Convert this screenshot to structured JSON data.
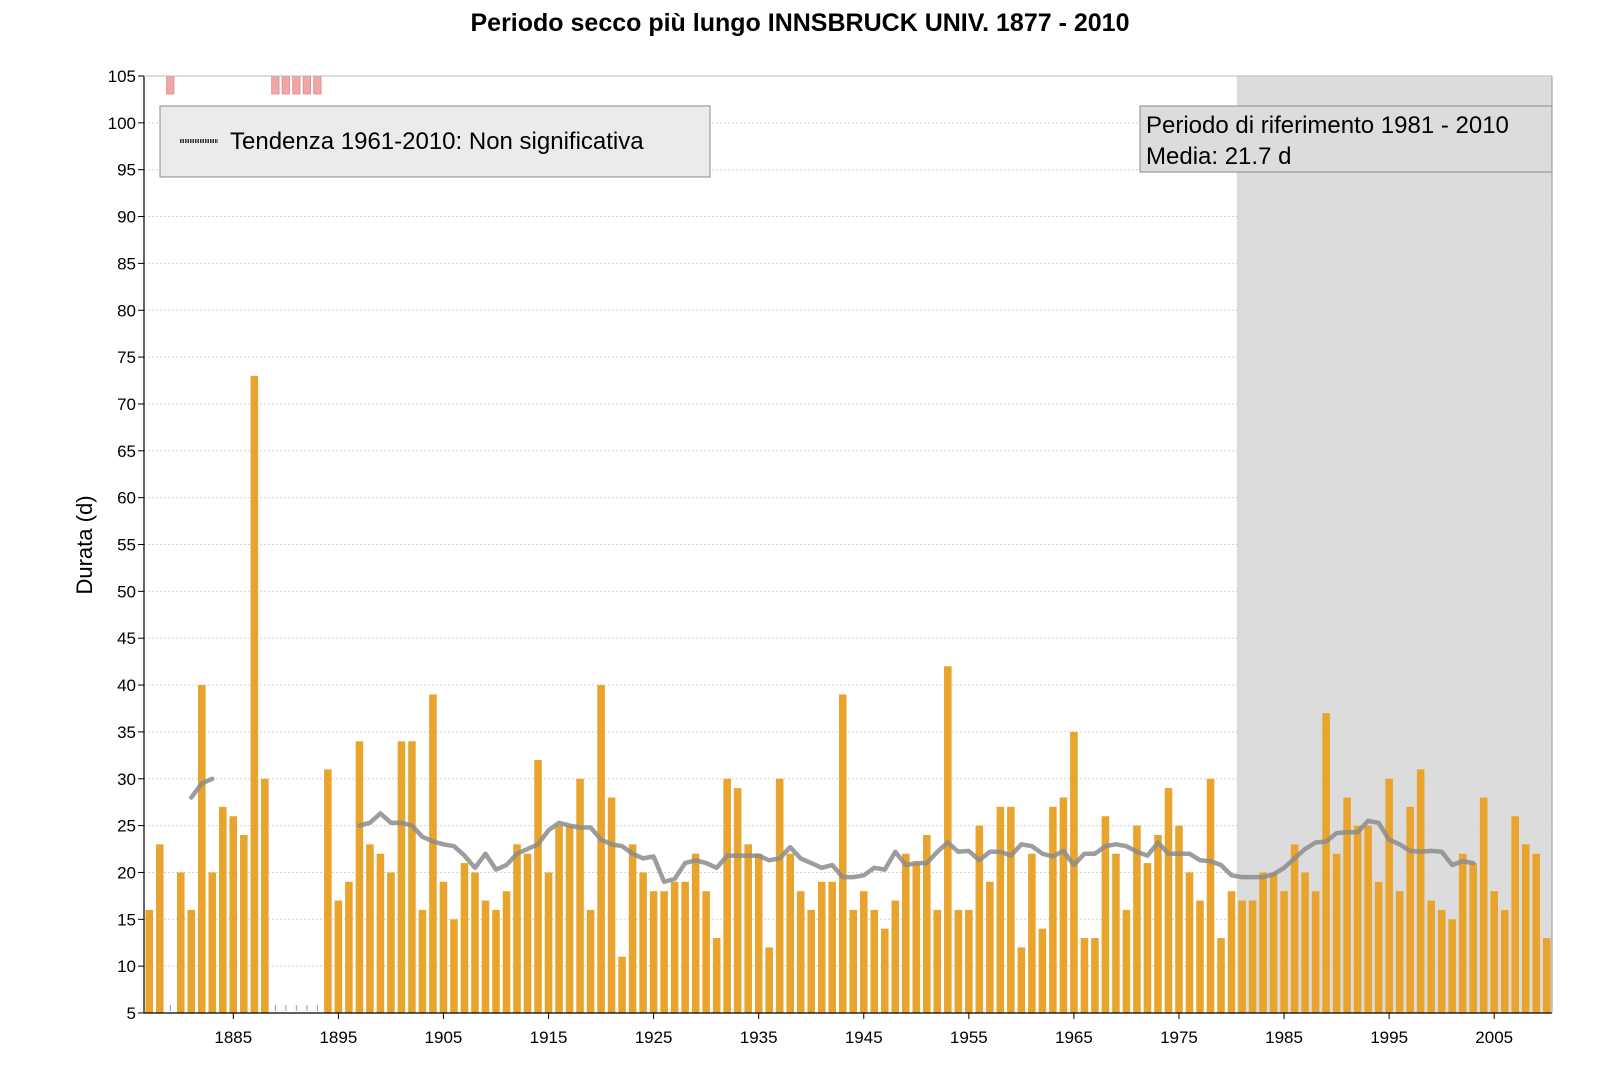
{
  "chart_data": {
    "type": "bar",
    "title": "Periodo secco più lungo INNSBRUCK UNIV. 1877 - 2010",
    "ylabel": "Durata (d)",
    "xlabel": "",
    "ylim": [
      5,
      105
    ],
    "y_ticks": [
      5,
      10,
      15,
      20,
      25,
      30,
      35,
      40,
      45,
      50,
      55,
      60,
      65,
      70,
      75,
      80,
      85,
      90,
      95,
      100,
      105
    ],
    "xlim": [
      1877,
      2010
    ],
    "x_ticks": [
      1885,
      1895,
      1905,
      1915,
      1925,
      1935,
      1945,
      1955,
      1965,
      1975,
      1985,
      1995,
      2005
    ],
    "grid": "horizontal",
    "bar_color": "#E8A42C",
    "trend_color": "#8C8C8C",
    "missing_color": "#F2A6A6",
    "reference_period": {
      "start": 1981,
      "end": 2010,
      "label": "Periodo di riferimento 1981 - 2010",
      "mean_label": "Media: 21.7 d",
      "shade_color": "#DCDCDC"
    },
    "legend": {
      "placement": "top-left",
      "trend_label": "Tendenza 1961-2010: Non significativa"
    },
    "missing_years": [
      1879,
      1889,
      1890,
      1891,
      1892,
      1893
    ],
    "series": [
      {
        "kind": "bar",
        "x": [
          1877,
          1878,
          1880,
          1881,
          1882,
          1883,
          1884,
          1885,
          1886,
          1887,
          1888,
          1894,
          1895,
          1896,
          1897,
          1898,
          1899,
          1900,
          1901,
          1902,
          1903,
          1904,
          1905,
          1906,
          1907,
          1908,
          1909,
          1910,
          1911,
          1912,
          1913,
          1914,
          1915,
          1916,
          1917,
          1918,
          1919,
          1920,
          1921,
          1922,
          1923,
          1924,
          1925,
          1926,
          1927,
          1928,
          1929,
          1930,
          1931,
          1932,
          1933,
          1934,
          1935,
          1936,
          1937,
          1938,
          1939,
          1940,
          1941,
          1942,
          1943,
          1944,
          1945,
          1946,
          1947,
          1948,
          1949,
          1950,
          1951,
          1952,
          1953,
          1954,
          1955,
          1956,
          1957,
          1958,
          1959,
          1960,
          1961,
          1962,
          1963,
          1964,
          1965,
          1966,
          1967,
          1968,
          1969,
          1970,
          1971,
          1972,
          1973,
          1974,
          1975,
          1976,
          1977,
          1978,
          1979,
          1980,
          1981,
          1982,
          1983,
          1984,
          1985,
          1986,
          1987,
          1988,
          1989,
          1990,
          1991,
          1992,
          1993,
          1994,
          1995,
          1996,
          1997,
          1998,
          1999,
          2000,
          2001,
          2002,
          2003,
          2004,
          2005,
          2006,
          2007,
          2008,
          2009,
          2010
        ],
        "values": [
          16,
          23,
          20,
          16,
          40,
          20,
          27,
          26,
          24,
          73,
          30,
          31,
          17,
          19,
          34,
          23,
          22,
          20,
          34,
          34,
          16,
          39,
          19,
          15,
          21,
          20,
          17,
          16,
          18,
          23,
          22,
          32,
          20,
          25,
          25,
          30,
          16,
          40,
          28,
          11,
          23,
          20,
          18,
          18,
          19,
          19,
          22,
          18,
          13,
          30,
          29,
          23,
          22,
          12,
          30,
          22,
          18,
          16,
          19,
          19,
          39,
          16,
          18,
          16,
          14,
          17,
          22,
          21,
          24,
          16,
          42,
          16,
          16,
          25,
          19,
          27,
          27,
          12,
          22,
          14,
          27,
          28,
          35,
          13,
          13,
          26,
          22,
          16,
          25,
          21,
          24,
          29,
          25,
          20,
          17,
          30,
          13,
          18,
          17,
          17,
          20,
          20,
          18,
          23,
          20,
          18,
          37,
          22,
          28,
          25,
          25,
          19,
          30,
          18,
          27,
          31,
          17,
          16,
          15,
          22,
          21,
          28,
          18,
          16,
          26,
          23,
          22,
          13
        ]
      },
      {
        "kind": "line",
        "segments": [
          {
            "x": [
              1881,
              1882,
              1883
            ],
            "y": [
              28,
              29.5,
              30
            ]
          },
          {
            "x": [
              1897,
              1898,
              1899,
              1900,
              1901,
              1902,
              1903,
              1904,
              1905,
              1906,
              1907,
              1908,
              1909,
              1910,
              1911,
              1912,
              1913,
              1914,
              1915,
              1916,
              1917,
              1918,
              1919,
              1920,
              1921,
              1922,
              1923,
              1924,
              1925,
              1926,
              1927,
              1928,
              1929,
              1930,
              1931,
              1932,
              1933,
              1934,
              1935,
              1936,
              1937,
              1938,
              1939,
              1940,
              1941,
              1942,
              1943,
              1944,
              1945,
              1946,
              1947,
              1948,
              1949,
              1950,
              1951,
              1952,
              1953,
              1954,
              1955,
              1956,
              1957,
              1958,
              1959,
              1960,
              1961,
              1962,
              1963,
              1964,
              1965,
              1966,
              1967,
              1968,
              1969,
              1970,
              1971,
              1972,
              1973,
              1974,
              1975,
              1976,
              1977,
              1978,
              1979,
              1980,
              1981,
              1982,
              1983,
              1984,
              1985,
              1986,
              1987,
              1988,
              1989,
              1990,
              1991,
              1992,
              1993,
              1994,
              1995,
              1996,
              1997,
              1998,
              1999,
              2000,
              2001,
              2002,
              2003
            ],
            "y": [
              25,
              25.3,
              26.3,
              25.3,
              25.3,
              25,
              23.8,
              23.3,
              23,
              22.8,
              21.8,
              20.5,
              22,
              20.3,
              20.8,
              22,
              22.5,
              23,
              24.5,
              25.3,
              25,
              24.8,
              24.8,
              23.5,
              23,
              22.8,
              22,
              21.5,
              21.7,
              19,
              19.3,
              21,
              21.3,
              21,
              20.5,
              21.8,
              21.8,
              21.8,
              21.8,
              21.3,
              21.5,
              22.7,
              21.5,
              21,
              20.5,
              20.8,
              19.5,
              19.5,
              19.7,
              20.5,
              20.3,
              22.2,
              20.8,
              21,
              21,
              22.2,
              23.2,
              22.2,
              22.3,
              21.3,
              22.2,
              22.2,
              21.8,
              23,
              22.8,
              22,
              21.7,
              22.3,
              20.8,
              22,
              22,
              22.8,
              23,
              22.8,
              22.2,
              21.8,
              23.2,
              22,
              22,
              22,
              21.3,
              21.2,
              20.8,
              19.7,
              19.5,
              19.5,
              19.5,
              19.8,
              20.5,
              21.5,
              22.5,
              23.2,
              23.3,
              24.2,
              24.3,
              24.3,
              25.5,
              25.3,
              23.5,
              23,
              22.3,
              22.2,
              22.3,
              22.2,
              20.8,
              21.2,
              21
            ]
          }
        ]
      }
    ]
  }
}
